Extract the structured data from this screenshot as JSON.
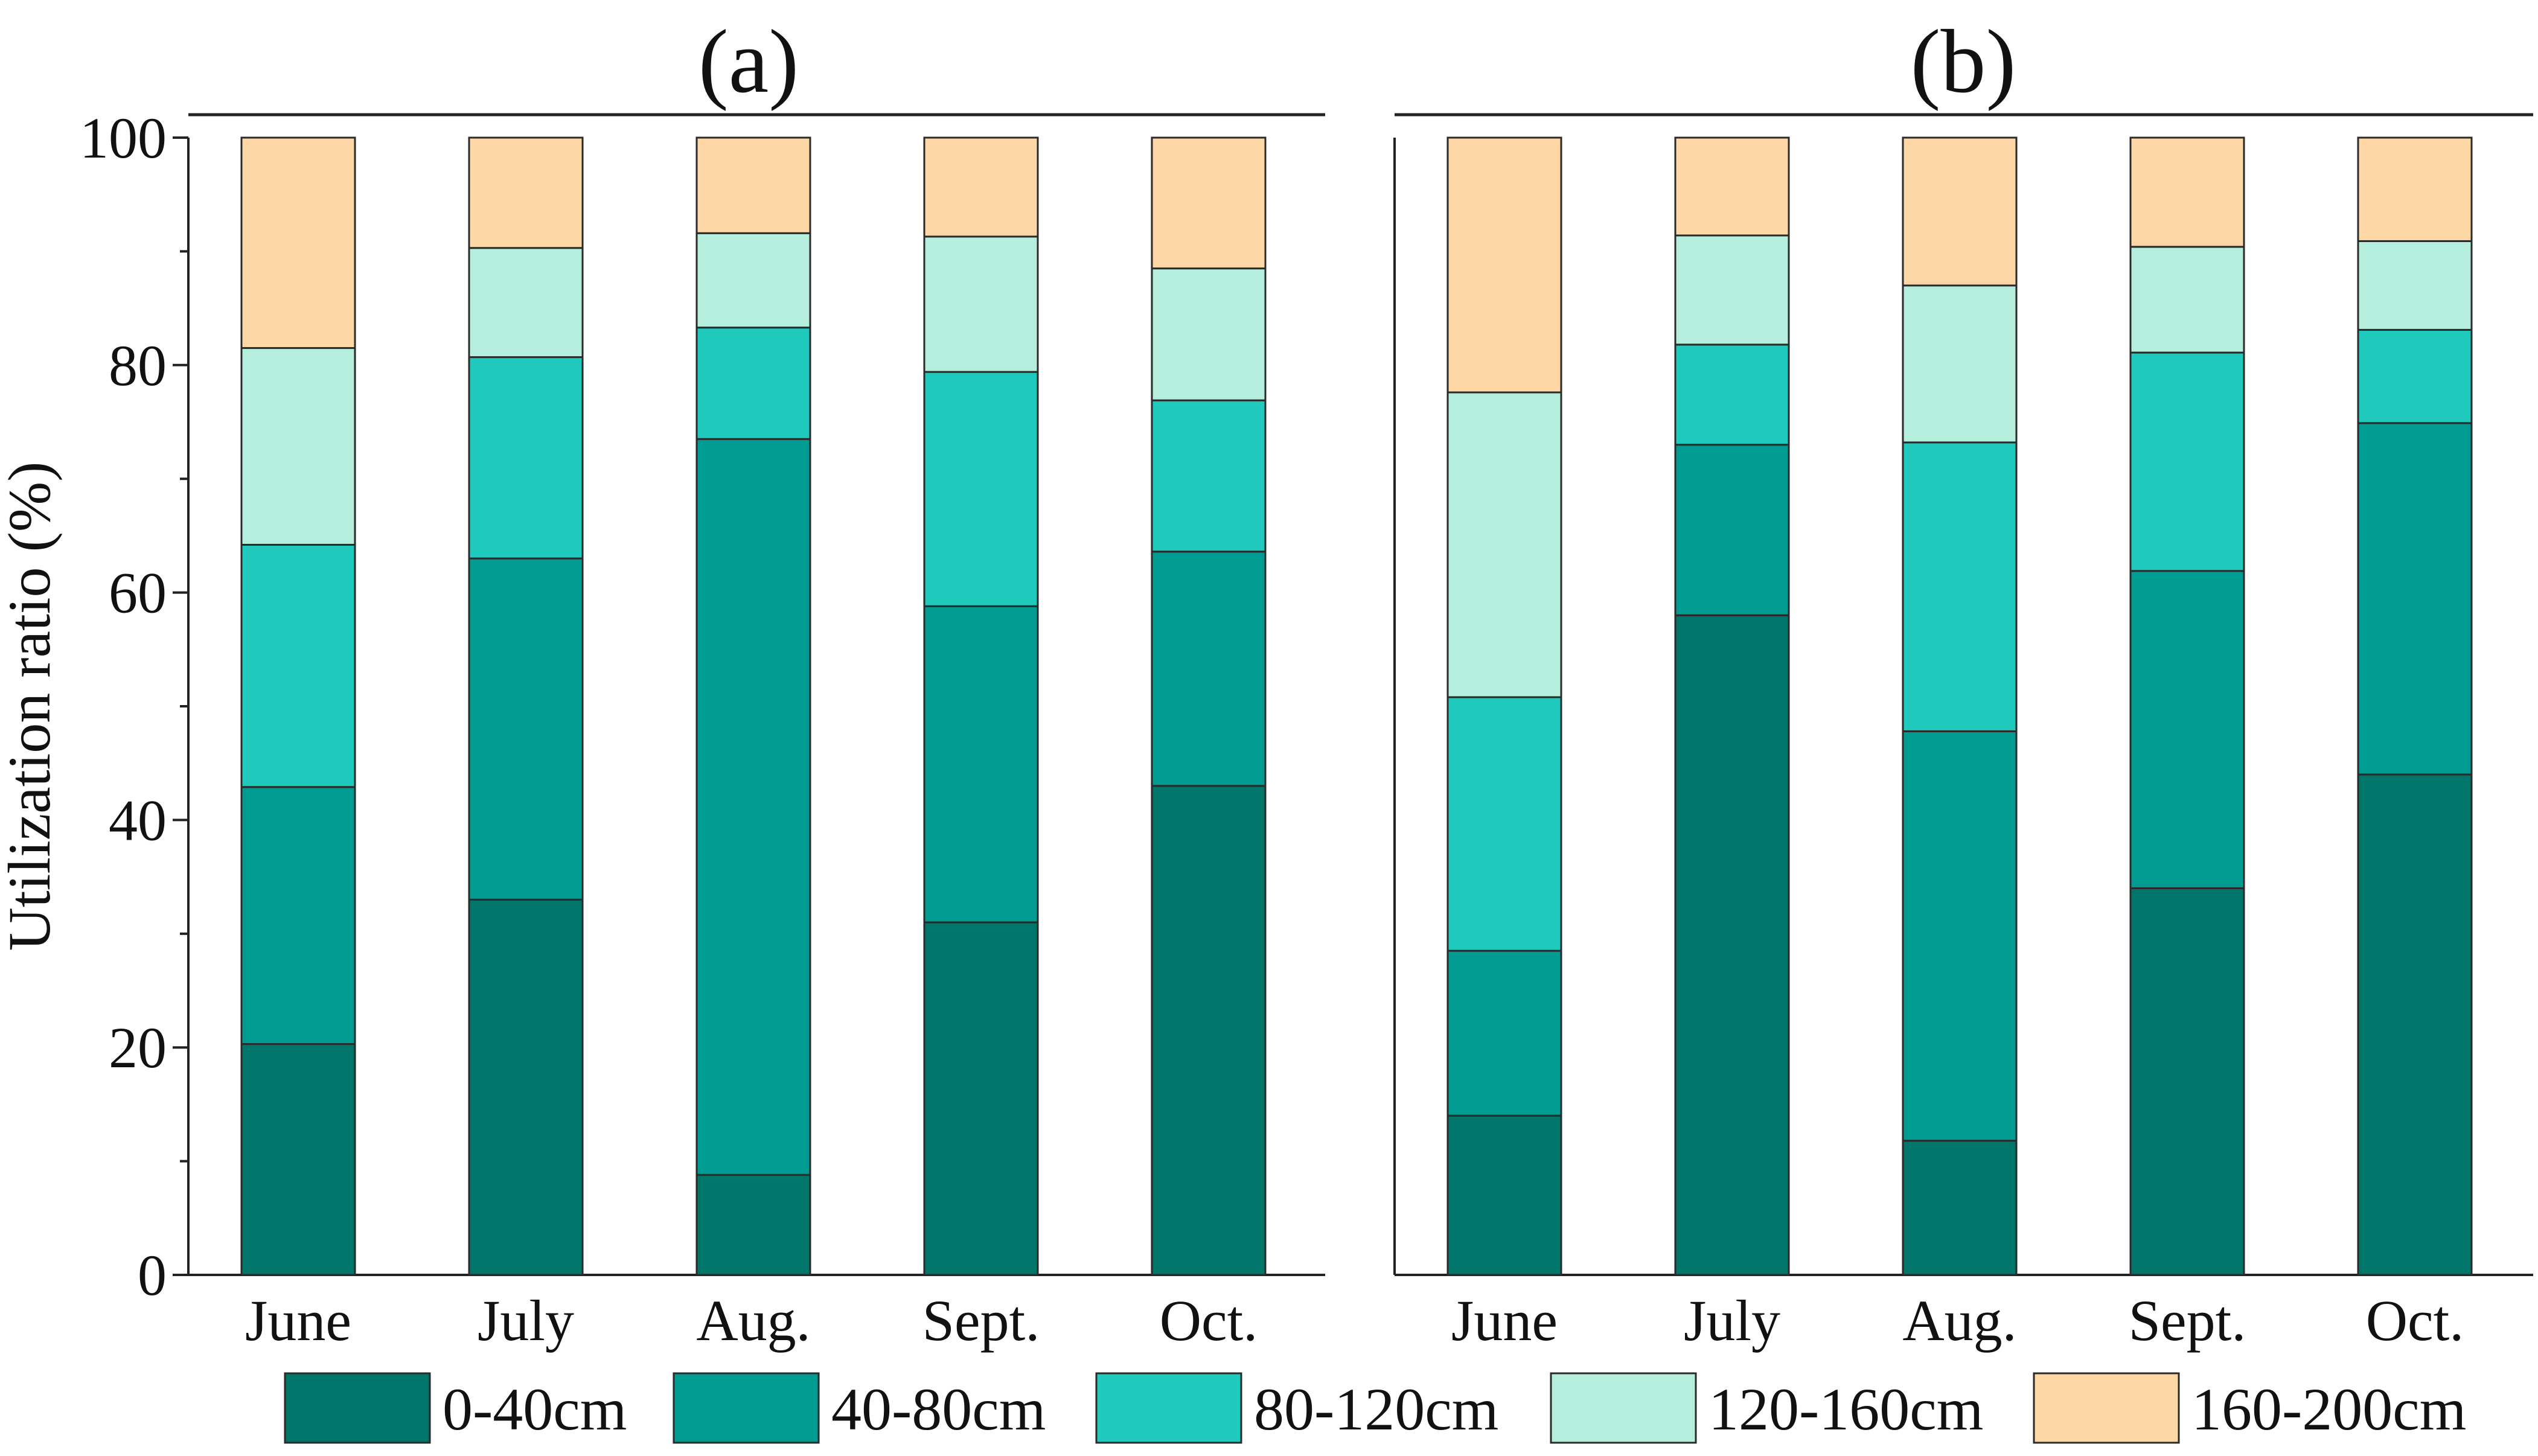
{
  "chart_data": [
    {
      "type": "bar",
      "stacked": true,
      "title": "(a)",
      "xlabel": "",
      "ylabel": "Utilization ratio (%)",
      "ylim": [
        0,
        100
      ],
      "yticks": [
        0,
        20,
        40,
        60,
        80,
        100
      ],
      "categories": [
        "June",
        "July",
        "Aug.",
        "Sept.",
        "Oct."
      ],
      "series": [
        {
          "name": "0-40cm",
          "values": [
            20.3,
            33.0,
            8.8,
            31.0,
            43.0
          ]
        },
        {
          "name": "40-80cm",
          "values": [
            22.6,
            30.0,
            64.7,
            27.8,
            20.6
          ]
        },
        {
          "name": "80-120cm",
          "values": [
            21.3,
            17.7,
            9.8,
            20.6,
            13.3
          ]
        },
        {
          "name": "120-160cm",
          "values": [
            17.3,
            9.6,
            8.3,
            11.9,
            11.6
          ]
        },
        {
          "name": "160-200cm",
          "values": [
            18.5,
            9.7,
            8.4,
            8.7,
            11.5
          ]
        }
      ]
    },
    {
      "type": "bar",
      "stacked": true,
      "title": "(b)",
      "xlabel": "",
      "ylabel": "Utilization ratio (%)",
      "ylim": [
        0,
        100
      ],
      "yticks": [
        0,
        20,
        40,
        60,
        80,
        100
      ],
      "categories": [
        "June",
        "July",
        "Aug.",
        "Sept.",
        "Oct."
      ],
      "series": [
        {
          "name": "0-40cm",
          "values": [
            14.0,
            58.0,
            11.8,
            34.0,
            44.0
          ]
        },
        {
          "name": "40-80cm",
          "values": [
            14.5,
            15.0,
            36.0,
            27.9,
            30.9
          ]
        },
        {
          "name": "80-120cm",
          "values": [
            22.3,
            8.8,
            25.4,
            19.2,
            8.2
          ]
        },
        {
          "name": "120-160cm",
          "values": [
            26.8,
            9.6,
            13.8,
            9.3,
            7.8
          ]
        },
        {
          "name": "160-200cm",
          "values": [
            22.4,
            8.6,
            13.0,
            9.6,
            9.1
          ]
        }
      ]
    }
  ],
  "legend": {
    "items": [
      {
        "label": "0-40cm",
        "color": "#00756A"
      },
      {
        "label": "40-80cm",
        "color": "#009C92"
      },
      {
        "label": "80-120cm",
        "color": "#1FC9BC"
      },
      {
        "label": "120-160cm",
        "color": "#B5EEDD"
      },
      {
        "label": "160-200cm",
        "color": "#FDD8A6"
      }
    ]
  }
}
